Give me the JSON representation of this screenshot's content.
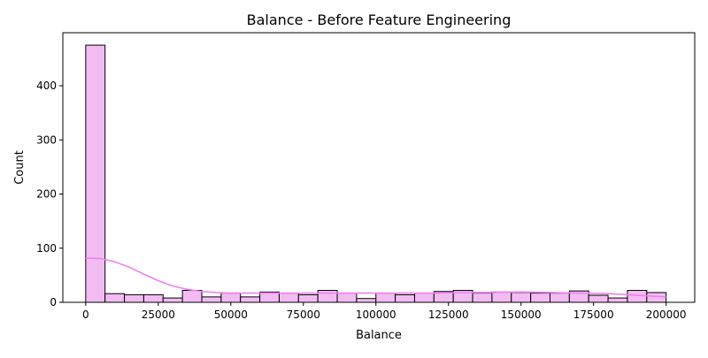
{
  "chart_data": {
    "type": "bar",
    "title": "Balance - Before Feature Engineering",
    "xlabel": "Balance",
    "ylabel": "Count",
    "xlim": [
      -7882,
      209862
    ],
    "ylim": [
      0,
      498
    ],
    "xticks": [
      0,
      25000,
      50000,
      75000,
      100000,
      125000,
      150000,
      175000,
      200000
    ],
    "xtick_labels": [
      "0",
      "25000",
      "50000",
      "75000",
      "100000",
      "125000",
      "150000",
      "175000",
      "200000"
    ],
    "yticks": [
      0,
      100,
      200,
      300,
      400
    ],
    "ytick_labels": [
      "0",
      "100",
      "200",
      "300",
      "400"
    ],
    "bin_edges": [
      0,
      6667,
      13333,
      20000,
      26667,
      33333,
      40000,
      46667,
      53333,
      60000,
      66667,
      73333,
      80000,
      86667,
      93333,
      100000,
      106667,
      113333,
      120000,
      126667,
      133333,
      140000,
      146667,
      153333,
      160000,
      166667,
      173333,
      180000,
      186667,
      193333,
      200000
    ],
    "values": [
      475,
      16,
      14,
      14,
      8,
      22,
      10,
      17,
      10,
      19,
      17,
      14,
      22,
      17,
      7,
      17,
      14,
      17,
      20,
      22,
      17,
      19,
      18,
      17,
      17,
      21,
      13,
      8,
      22,
      18
    ],
    "kde": {
      "x": [
        0,
        5000,
        10000,
        15000,
        20000,
        25000,
        30000,
        35000,
        40000,
        45000,
        50000,
        60000,
        70000,
        80000,
        90000,
        100000,
        110000,
        120000,
        130000,
        140000,
        150000,
        160000,
        170000,
        180000,
        190000,
        200000
      ],
      "y": [
        82,
        81,
        75,
        65,
        52,
        40,
        30,
        24,
        20,
        18,
        17,
        17,
        17,
        17,
        17,
        17,
        17,
        17,
        18,
        18,
        19,
        18,
        17,
        16,
        13,
        10
      ]
    },
    "grid": false,
    "legend": "none",
    "colors": {
      "bar_fill": "#f2bcf2",
      "bar_edge": "#000000",
      "kde_line": "#ee82ee"
    }
  }
}
